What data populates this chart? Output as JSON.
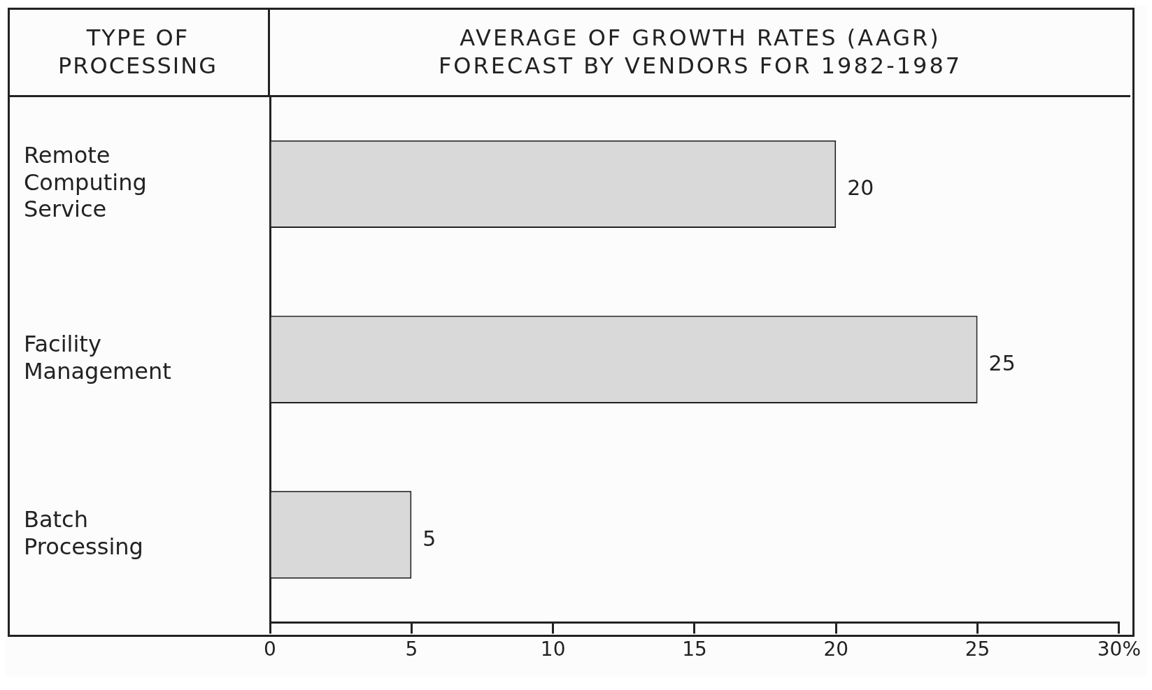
{
  "chart_data": {
    "type": "bar",
    "orientation": "horizontal",
    "title": "AVERAGE OF GROWTH RATES (AAGR)\nFORECAST BY VENDORS FOR 1982-1987",
    "ylabel": "TYPE OF\nPROCESSING",
    "categories": [
      "Remote Computing Service",
      "Facility Management",
      "Batch Processing"
    ],
    "values": [
      20,
      25,
      5
    ],
    "color": "#d9d9d9",
    "data_labels": true,
    "xlim": [
      0,
      30
    ],
    "xticks": [
      0,
      5,
      10,
      15,
      20,
      25,
      {
        "value": 30,
        "label": "30%"
      }
    ],
    "grid": false,
    "legend": false
  }
}
